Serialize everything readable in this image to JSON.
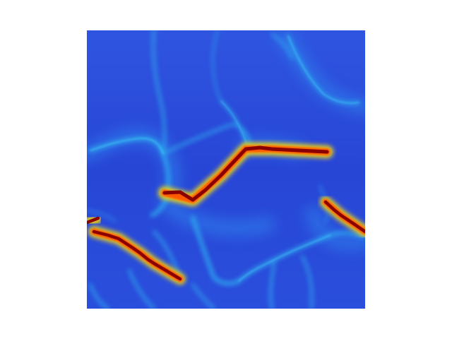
{
  "figure": {
    "type": "heatmap-image",
    "colormap": "jet",
    "background_color": "#ffffff",
    "colors": {
      "low": "#2633c4",
      "mid_low": "#2f55e0",
      "cyan": "#27b6f0",
      "high": "#ffe000",
      "peak": "#8a0000"
    }
  }
}
